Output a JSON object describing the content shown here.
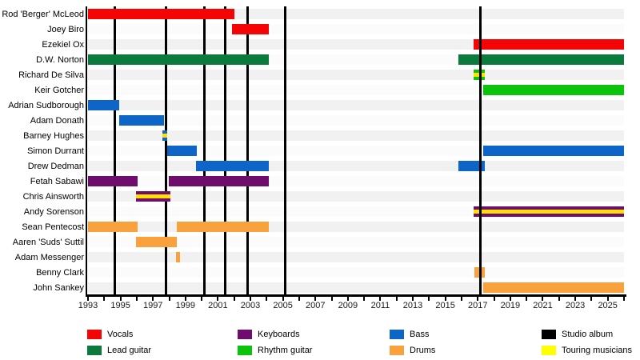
{
  "chart_data": {
    "type": "bar",
    "subtype": "gantt-membership-timeline",
    "axis": {
      "start": 1993,
      "end": 2026,
      "minor_tick_step": 1,
      "label_step": 2,
      "tick_labels": [
        "1993",
        "1995",
        "1997",
        "1999",
        "2001",
        "2003",
        "2005",
        "2007",
        "2009",
        "2011",
        "2013",
        "2015",
        "2017",
        "2019",
        "2021",
        "2023",
        "2025"
      ]
    },
    "colors": {
      "vocals": "#F40404",
      "lead_guitar": "#0A7B3C",
      "rhythm_guitar": "#0CC30C",
      "bass": "#0D65C8",
      "keyboards": "#6E0D6E",
      "drums": "#F9A13C",
      "studio_album": "#000000",
      "touring_stripe": "#FFE000",
      "touring_legend": "#FFFF00",
      "row_stripe_even": "#F1F1F1",
      "row_stripe_odd": "#FBFBFB"
    },
    "members": [
      {
        "name": "Rod 'Berger' McLeod",
        "bars": [
          {
            "start": 1993.0,
            "end": 2002.0,
            "role": "vocals"
          }
        ]
      },
      {
        "name": "Joey Biro",
        "bars": [
          {
            "start": 2001.85,
            "end": 2004.15,
            "role": "vocals"
          }
        ]
      },
      {
        "name": "Ezekiel Ox",
        "bars": [
          {
            "start": 2016.75,
            "end": 2026.0,
            "role": "vocals"
          }
        ]
      },
      {
        "name": "D.W. Norton",
        "bars": [
          {
            "start": 1993.0,
            "end": 2004.15,
            "role": "lead_guitar"
          },
          {
            "start": 2015.8,
            "end": 2026.0,
            "role": "lead_guitar"
          }
        ]
      },
      {
        "name": "Richard De Silva",
        "bars": [
          {
            "start": 2016.75,
            "end": 2017.45,
            "role": "rhythm_guitar",
            "touring": true
          }
        ]
      },
      {
        "name": "Keir Gotcher",
        "bars": [
          {
            "start": 2017.35,
            "end": 2026.0,
            "role": "rhythm_guitar"
          }
        ]
      },
      {
        "name": "Adrian Sudborough",
        "bars": [
          {
            "start": 1993.0,
            "end": 1994.9,
            "role": "bass"
          }
        ]
      },
      {
        "name": "Adam Donath",
        "bars": [
          {
            "start": 1994.9,
            "end": 1997.7,
            "role": "bass"
          }
        ]
      },
      {
        "name": "Barney Hughes",
        "bars": [
          {
            "start": 1997.6,
            "end": 1997.9,
            "role": "bass",
            "touring": true
          }
        ]
      },
      {
        "name": "Simon Durrant",
        "bars": [
          {
            "start": 1997.9,
            "end": 1999.7,
            "role": "bass"
          },
          {
            "start": 2017.35,
            "end": 2026.0,
            "role": "bass"
          }
        ]
      },
      {
        "name": "Drew Dedman",
        "bars": [
          {
            "start": 1999.65,
            "end": 2004.15,
            "role": "bass"
          },
          {
            "start": 2015.8,
            "end": 2017.45,
            "role": "bass"
          }
        ]
      },
      {
        "name": "Fetah Sabawi",
        "bars": [
          {
            "start": 1993.0,
            "end": 1996.05,
            "role": "keyboards"
          },
          {
            "start": 1997.95,
            "end": 2004.15,
            "role": "keyboards"
          }
        ]
      },
      {
        "name": "Chris Ainsworth",
        "bars": [
          {
            "start": 1995.95,
            "end": 1998.05,
            "role": "keyboards",
            "touring": true
          }
        ]
      },
      {
        "name": "Andy Sorenson",
        "bars": [
          {
            "start": 2016.75,
            "end": 2026.0,
            "role": "keyboards",
            "touring": true
          }
        ]
      },
      {
        "name": "Sean Pentecost",
        "bars": [
          {
            "start": 1993.0,
            "end": 1996.05,
            "role": "drums"
          },
          {
            "start": 1998.45,
            "end": 2004.15,
            "role": "drums"
          }
        ]
      },
      {
        "name": "Aaren 'Suds' Suttil",
        "bars": [
          {
            "start": 1995.95,
            "end": 1998.45,
            "role": "drums"
          }
        ]
      },
      {
        "name": "Adam Messenger",
        "bars": [
          {
            "start": 1998.4,
            "end": 1998.65,
            "role": "drums"
          }
        ]
      },
      {
        "name": "Benny Clark",
        "bars": [
          {
            "start": 2016.8,
            "end": 2017.45,
            "role": "drums"
          }
        ]
      },
      {
        "name": "John Sankey",
        "bars": [
          {
            "start": 2017.35,
            "end": 2026.0,
            "role": "drums"
          }
        ]
      }
    ],
    "studio_album_lines": [
      {
        "year": 1994.67
      },
      {
        "year": 1997.78
      },
      {
        "year": 2000.15
      },
      {
        "year": 2001.45
      },
      {
        "year": 2002.85
      },
      {
        "year": 2005.15
      },
      {
        "year": 2017.15,
        "over_bars": true
      }
    ],
    "legend": [
      {
        "label": "Vocals",
        "color_key": "vocals",
        "col": 0,
        "row": 0
      },
      {
        "label": "Lead guitar",
        "color_key": "lead_guitar",
        "col": 0,
        "row": 1
      },
      {
        "label": "Keyboards",
        "color_key": "keyboards",
        "col": 1,
        "row": 0
      },
      {
        "label": "Rhythm guitar",
        "color_key": "rhythm_guitar",
        "col": 1,
        "row": 1
      },
      {
        "label": "Bass",
        "color_key": "bass",
        "col": 2,
        "row": 0
      },
      {
        "label": "Drums",
        "color_key": "drums",
        "col": 2,
        "row": 1
      },
      {
        "label": "Studio album",
        "color_key": "studio_album",
        "col": 3,
        "row": 0
      },
      {
        "label": "Touring musicians",
        "color_key": "touring_legend",
        "col": 3,
        "row": 1
      }
    ]
  }
}
